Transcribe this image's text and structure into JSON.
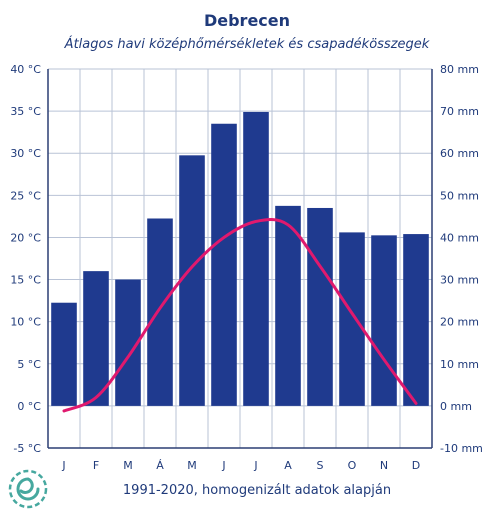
{
  "chart_data": {
    "type": "bar",
    "title": "Debrecen",
    "subtitle": "Átlagos havi középhőmérsékletek  és csapadékösszegek",
    "footer": "1991-2020, homogenizált adatok alapján",
    "categories": [
      "J",
      "F",
      "M",
      "Á",
      "M",
      "J",
      "J",
      "A",
      "S",
      "O",
      "N",
      "D"
    ],
    "left_axis": {
      "unit": "°C",
      "range": [
        -5,
        40
      ],
      "ticks": [
        "40 °C",
        "35 °C",
        "30 °C",
        "25 °C",
        "20 °C",
        "15 °C",
        "10 °C",
        "5 °C",
        "0 °C",
        "-5 °C"
      ]
    },
    "right_axis": {
      "unit": "mm",
      "range": [
        -10,
        80
      ],
      "ticks": [
        "80 mm",
        "70 mm",
        "60 mm",
        "50 mm",
        "40 mm",
        "30 mm",
        "20 mm",
        "10 mm",
        "0 mm",
        "-10 mm"
      ]
    },
    "series": [
      {
        "type": "bar",
        "axis": "right",
        "color": "#1f3a8f",
        "values": [
          24.5,
          32,
          30,
          44.5,
          59.5,
          67,
          69.8,
          47.5,
          47,
          41.2,
          40.5,
          40.8
        ]
      },
      {
        "type": "line",
        "axis": "left",
        "color": "#e0196e",
        "values": [
          -0.6,
          1.0,
          5.8,
          11.6,
          16.5,
          20.0,
          21.9,
          21.5,
          16.6,
          11.0,
          5.5,
          0.3
        ]
      }
    ],
    "grid": true
  },
  "colors": {
    "text": "#1f3a7a",
    "grid": "#b9c3d6",
    "axis": "#2b3f73",
    "logo": "#46a89f"
  },
  "logo": {
    "icon": "spiral-logo-icon"
  }
}
